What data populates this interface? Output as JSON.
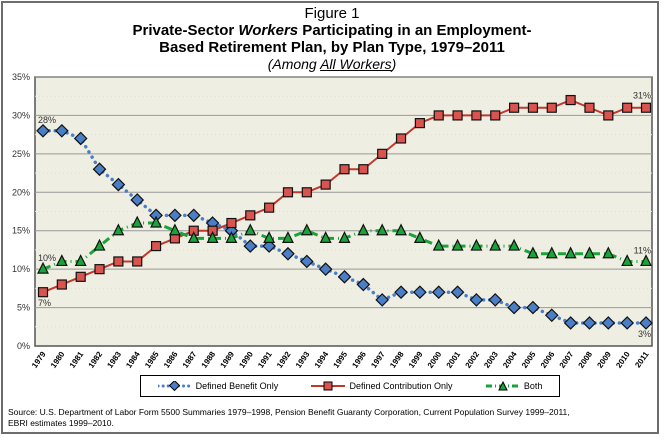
{
  "chart_data": {
    "type": "line",
    "figure_label": "Figure 1",
    "title_line1_pre": "Private-Sector ",
    "title_line1_em": "Workers",
    "title_line1_post": " Participating in an Employment-",
    "title_line2": "Based Retirement Plan, by Plan Type, 1979–2011",
    "subtitle_pre": "(Among ",
    "subtitle_u": "All Workers",
    "subtitle_post": ")",
    "xlabel": "",
    "ylabel": "",
    "ylim": [
      0,
      35
    ],
    "yticks": [
      "0%",
      "5%",
      "10%",
      "15%",
      "20%",
      "25%",
      "30%",
      "35%"
    ],
    "x": [
      "1979",
      "1980",
      "1981",
      "1982",
      "1983",
      "1984",
      "1985",
      "1986",
      "1987",
      "1988",
      "1989",
      "1990",
      "1991",
      "1992",
      "1993",
      "1994",
      "1995",
      "1996",
      "1997",
      "1998",
      "1999",
      "2000",
      "2001",
      "2002",
      "2003",
      "2004",
      "2005",
      "2006",
      "2007",
      "2008",
      "2009",
      "2010",
      "2011"
    ],
    "grid": true,
    "legend_position": "bottom",
    "series": [
      {
        "name": "Defined Benefit Only",
        "color": "#4a7fc8",
        "marker": "diamond",
        "values": [
          28,
          28,
          27,
          23,
          21,
          19,
          17,
          17,
          17,
          16,
          15,
          13,
          13,
          12,
          11,
          10,
          9,
          8,
          6,
          7,
          7,
          7,
          7,
          6,
          6,
          5,
          5,
          4,
          3,
          3,
          3,
          3,
          3
        ]
      },
      {
        "name": "Defined Contribution Only",
        "color": "#c0392b",
        "marker": "square",
        "values": [
          7,
          8,
          9,
          10,
          11,
          11,
          13,
          14,
          15,
          15,
          16,
          17,
          18,
          20,
          20,
          21,
          23,
          23,
          25,
          27,
          29,
          30,
          30,
          30,
          30,
          31,
          31,
          31,
          32,
          31,
          30,
          31,
          31
        ]
      },
      {
        "name": "Both",
        "color": "#1aa33a",
        "marker": "triangle",
        "values": [
          10,
          11,
          11,
          13,
          15,
          16,
          16,
          15,
          14,
          14,
          14,
          15,
          14,
          14,
          15,
          14,
          14,
          15,
          15,
          15,
          14,
          13,
          13,
          13,
          13,
          13,
          12,
          12,
          12,
          12,
          12,
          11,
          11
        ]
      }
    ],
    "annotations": [
      "28%",
      "7%",
      "10%",
      "31%",
      "11%",
      "3%"
    ],
    "source": "Source: U.S. Department of Labor Form 5500 Summaries 1979–1998, Pension Benefit Guaranty Corporation, Current Population Survey 1999–2011,",
    "source_line2": "EBRI estimates 1999–2010."
  }
}
